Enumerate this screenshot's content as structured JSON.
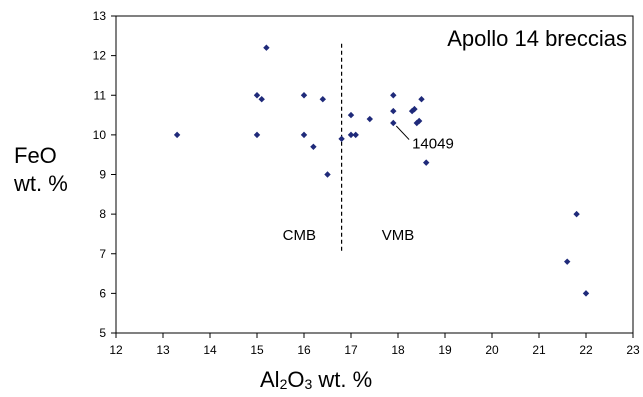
{
  "chart_data": {
    "type": "scatter",
    "title": "Apollo 14 breccias",
    "ylabel": {
      "line1": "FeO",
      "line2": "wt. %"
    },
    "xlabel": {
      "pre": "Al",
      "sub1": "2",
      "mid": "O",
      "sub2": "3",
      "post": " wt. %"
    },
    "xlim": [
      12,
      23
    ],
    "ylim": [
      5,
      13
    ],
    "xticks": [
      12,
      13,
      14,
      15,
      16,
      17,
      18,
      19,
      20,
      21,
      22,
      23
    ],
    "yticks": [
      5,
      6,
      7,
      8,
      9,
      10,
      11,
      12,
      13
    ],
    "grid": false,
    "marker_color": "#1f2a7a",
    "divider": {
      "x": 16.8,
      "y_from": 7.0,
      "y_to": 12.3
    },
    "region_labels": [
      {
        "text": "CMB",
        "x": 15.9,
        "y": 7.35
      },
      {
        "text": "VMB",
        "x": 18.0,
        "y": 7.35
      }
    ],
    "annotation": {
      "text": "14049",
      "point": [
        17.9,
        10.3
      ],
      "text_at": [
        18.3,
        9.78
      ]
    },
    "points": [
      {
        "x": 13.3,
        "y": 10.0
      },
      {
        "x": 15.0,
        "y": 11.0
      },
      {
        "x": 15.1,
        "y": 10.9
      },
      {
        "x": 15.0,
        "y": 10.0
      },
      {
        "x": 15.2,
        "y": 12.2
      },
      {
        "x": 16.0,
        "y": 11.0
      },
      {
        "x": 16.0,
        "y": 10.0
      },
      {
        "x": 16.2,
        "y": 9.7
      },
      {
        "x": 16.4,
        "y": 10.9
      },
      {
        "x": 16.5,
        "y": 9.0
      },
      {
        "x": 16.8,
        "y": 9.9
      },
      {
        "x": 17.0,
        "y": 10.5
      },
      {
        "x": 17.0,
        "y": 10.0
      },
      {
        "x": 17.1,
        "y": 10.0
      },
      {
        "x": 17.4,
        "y": 10.4
      },
      {
        "x": 17.9,
        "y": 11.0
      },
      {
        "x": 17.9,
        "y": 10.6
      },
      {
        "x": 17.9,
        "y": 10.3
      },
      {
        "x": 18.3,
        "y": 10.6
      },
      {
        "x": 18.35,
        "y": 10.65
      },
      {
        "x": 18.4,
        "y": 10.3
      },
      {
        "x": 18.45,
        "y": 10.35
      },
      {
        "x": 18.5,
        "y": 10.9
      },
      {
        "x": 18.6,
        "y": 9.3
      },
      {
        "x": 21.6,
        "y": 6.8
      },
      {
        "x": 21.8,
        "y": 8.0
      },
      {
        "x": 22.0,
        "y": 6.0
      }
    ]
  }
}
